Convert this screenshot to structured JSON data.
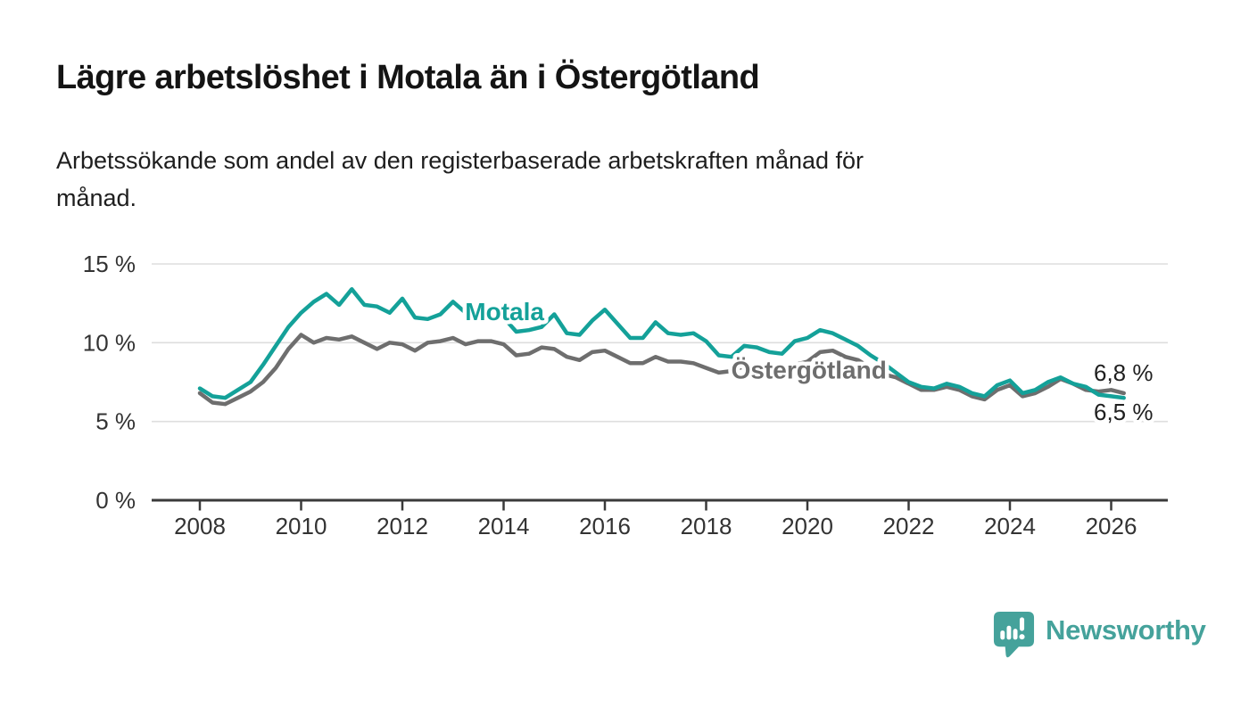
{
  "header": {
    "title": "Lägre arbetslöshet i Motala än i Östergötland",
    "subtitle": "Arbetssökande som andel av den registerbaserade arbetskraften månad för månad.",
    "subtitle_lines": [
      "Arbetssökande som andel av den registerbaserade arbetskraften månad för",
      "månad."
    ]
  },
  "chart_data": {
    "type": "line",
    "title": "Lägre arbetslöshet i Motala än i Östergötland",
    "subtitle": "Arbetssökande som andel av den registerbaserade arbetskraften månad för månad.",
    "unit": "%",
    "grid": "horizontal",
    "legend": "inline-labels",
    "ylim": [
      0,
      15
    ],
    "xlim": [
      2007.05,
      2027.1
    ],
    "yticks": [
      {
        "value": 0,
        "label": "0 %"
      },
      {
        "value": 5,
        "label": "5 %"
      },
      {
        "value": 10,
        "label": "10 %"
      },
      {
        "value": 15,
        "label": "15 %"
      }
    ],
    "xticks": [
      {
        "value": 2008,
        "label": "2008"
      },
      {
        "value": 2010,
        "label": "2010"
      },
      {
        "value": 2012,
        "label": "2012"
      },
      {
        "value": 2014,
        "label": "2014"
      },
      {
        "value": 2016,
        "label": "2016"
      },
      {
        "value": 2018,
        "label": "2018"
      },
      {
        "value": 2020,
        "label": "2020"
      },
      {
        "value": 2022,
        "label": "2022"
      },
      {
        "value": 2024,
        "label": "2024"
      },
      {
        "value": 2026,
        "label": "2026"
      }
    ],
    "x": [
      2008,
      2008.25,
      2008.5,
      2008.75,
      2009,
      2009.25,
      2009.5,
      2009.75,
      2010,
      2010.25,
      2010.5,
      2010.75,
      2011,
      2011.25,
      2011.5,
      2011.75,
      2012,
      2012.25,
      2012.5,
      2012.75,
      2013,
      2013.25,
      2013.5,
      2013.75,
      2014,
      2014.25,
      2014.5,
      2014.75,
      2015,
      2015.25,
      2015.5,
      2015.75,
      2016,
      2016.25,
      2016.5,
      2016.75,
      2017,
      2017.25,
      2017.5,
      2017.75,
      2018,
      2018.25,
      2018.5,
      2018.75,
      2019,
      2019.25,
      2019.5,
      2019.75,
      2020,
      2020.25,
      2020.5,
      2020.75,
      2021,
      2021.25,
      2021.5,
      2021.75,
      2022,
      2022.25,
      2022.5,
      2022.75,
      2023,
      2023.25,
      2023.5,
      2023.75,
      2024,
      2024.25,
      2024.5,
      2024.75,
      2025,
      2025.25,
      2025.5,
      2025.75,
      2026,
      2026.25
    ],
    "series": [
      {
        "name": "Östergötland",
        "color": "#6e6e6e",
        "end_label": "6,8 %",
        "values": [
          6.8,
          6.2,
          6.1,
          6.5,
          6.9,
          7.5,
          8.4,
          9.6,
          10.5,
          10.0,
          10.3,
          10.2,
          10.4,
          10.0,
          9.6,
          10.0,
          9.9,
          9.5,
          10.0,
          10.1,
          10.3,
          9.9,
          10.1,
          10.1,
          9.9,
          9.2,
          9.3,
          9.7,
          9.6,
          9.1,
          8.9,
          9.4,
          9.5,
          9.1,
          8.7,
          8.7,
          9.1,
          8.8,
          8.8,
          8.7,
          8.4,
          8.1,
          8.2,
          8.5,
          8.3,
          8.1,
          8.2,
          8.6,
          8.8,
          9.4,
          9.5,
          9.1,
          8.9,
          8.4,
          8.0,
          7.8,
          7.4,
          7.0,
          7.0,
          7.2,
          7.0,
          6.6,
          6.4,
          7.0,
          7.3,
          6.6,
          6.8,
          7.2,
          7.7,
          7.4,
          7.0,
          6.9,
          7.0,
          6.8
        ]
      },
      {
        "name": "Motala",
        "color": "#14a199",
        "end_label": "6,5 %",
        "values": [
          7.1,
          6.6,
          6.5,
          7.0,
          7.5,
          8.6,
          9.8,
          11.0,
          11.9,
          12.6,
          13.1,
          12.4,
          13.4,
          12.4,
          12.3,
          11.9,
          12.8,
          11.6,
          11.5,
          11.8,
          12.6,
          11.9,
          12.1,
          12.0,
          11.6,
          10.7,
          10.8,
          11.0,
          11.8,
          10.6,
          10.5,
          11.4,
          12.1,
          11.2,
          10.3,
          10.3,
          11.3,
          10.6,
          10.5,
          10.6,
          10.1,
          9.2,
          9.1,
          9.8,
          9.7,
          9.4,
          9.3,
          10.1,
          10.3,
          10.8,
          10.6,
          10.2,
          9.8,
          9.2,
          8.7,
          8.1,
          7.5,
          7.2,
          7.1,
          7.4,
          7.2,
          6.8,
          6.6,
          7.3,
          7.6,
          6.8,
          7.0,
          7.5,
          7.8,
          7.4,
          7.2,
          6.7,
          6.6,
          6.5
        ]
      }
    ]
  },
  "annotations": {
    "motala_label": "Motala",
    "ostergotland_label": "Östergötland",
    "end_label_top": "6,8 %",
    "end_label_bottom": "6,5 %"
  },
  "branding": {
    "logo_text": "Newsworthy",
    "logo_color": "#45a29b",
    "logo_icon": "bar-chart-speech-bubble"
  },
  "colors": {
    "motala": "#14a199",
    "ostergotland": "#6e6e6e",
    "gridline": "#dedede",
    "axis": "#3a3a3a",
    "text": "#333333"
  }
}
